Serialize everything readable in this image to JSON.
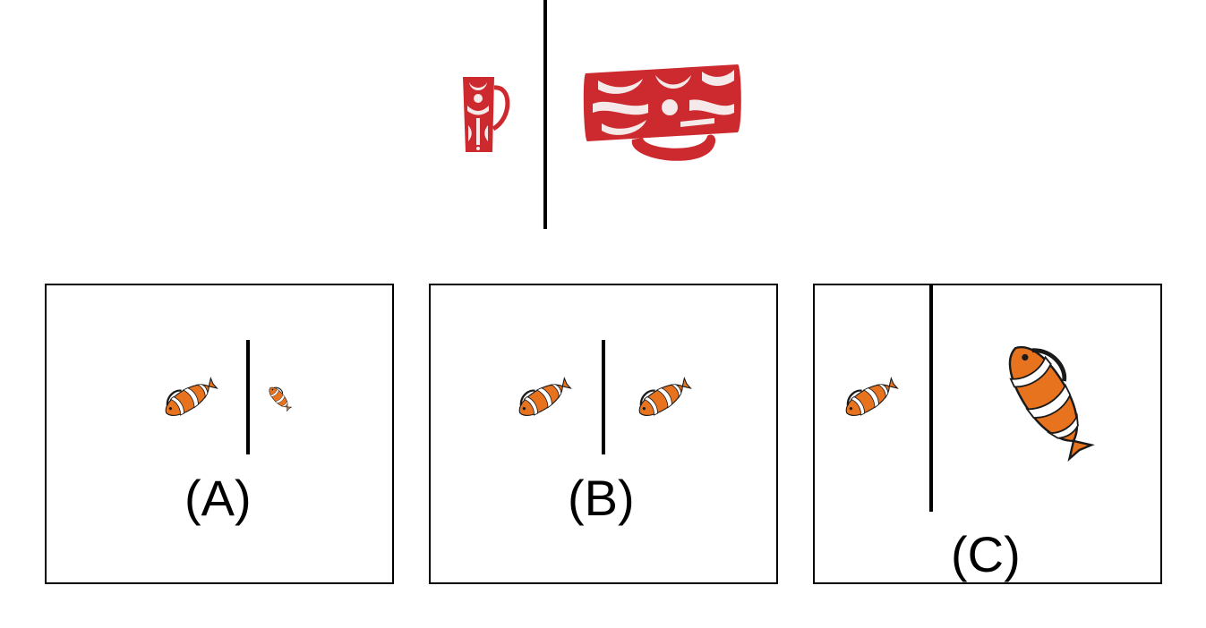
{
  "example": {
    "left_object": "tall-red-mug-icon",
    "right_object": "red-mug-rotated-icon"
  },
  "options": [
    {
      "label": "(A)",
      "left_object": "clownfish-icon",
      "right_object": "clownfish-small-rotated-icon"
    },
    {
      "label": "(B)",
      "left_object": "clownfish-icon",
      "right_object": "clownfish-icon"
    },
    {
      "label": "(C)",
      "left_object": "clownfish-icon",
      "right_object": "clownfish-large-rotated-icon"
    }
  ],
  "colors": {
    "mug_red": "#cc2a2e",
    "mug_pattern": "#f6e9e9",
    "fish_orange": "#e8731f",
    "fish_stripe": "#ffffff",
    "fish_outline": "#1a1a1a",
    "line": "#000000"
  }
}
